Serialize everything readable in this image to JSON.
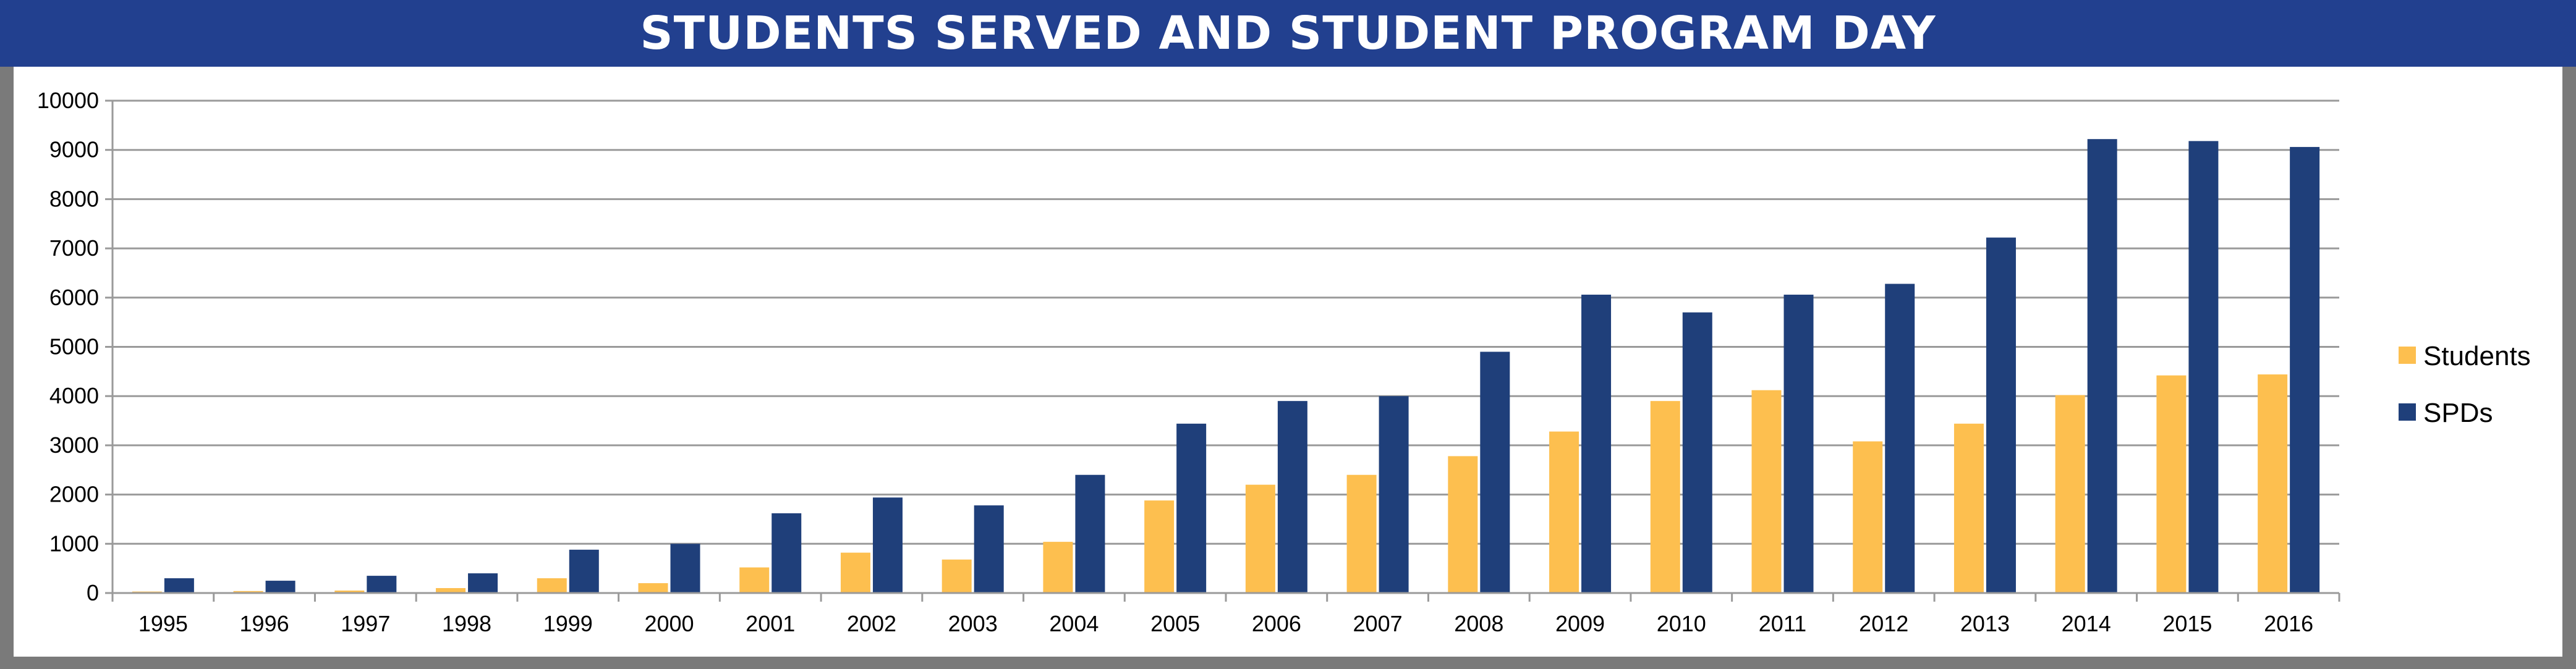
{
  "title": "STUDENTS SERVED AND STUDENT PROGRAM DAY",
  "colors": {
    "header_bg": "#22408f",
    "students": "#fdbf4f",
    "spds": "#1f3f7a",
    "grid": "#9a9a9a",
    "frame": "#7a7a7a"
  },
  "chart_data": {
    "type": "bar",
    "title": "STUDENTS SERVED AND STUDENT PROGRAM DAY",
    "xlabel": "",
    "ylabel": "",
    "ylim": [
      0,
      10000
    ],
    "yticks": [
      0,
      1000,
      2000,
      3000,
      4000,
      5000,
      6000,
      7000,
      8000,
      9000,
      10000
    ],
    "grid": true,
    "legend_position": "right",
    "categories": [
      "1995",
      "1996",
      "1997",
      "1998",
      "1999",
      "2000",
      "2001",
      "2002",
      "2003",
      "2004",
      "2005",
      "2006",
      "2007",
      "2008",
      "2009",
      "2010",
      "2011",
      "2012",
      "2013",
      "2014",
      "2015",
      "2016"
    ],
    "series": [
      {
        "name": "Students",
        "color": "#fdbf4f",
        "values": [
          30,
          40,
          50,
          100,
          300,
          200,
          520,
          820,
          680,
          1040,
          1880,
          2200,
          2400,
          2780,
          3280,
          3900,
          4120,
          3080,
          3440,
          4020,
          4420,
          4440
        ]
      },
      {
        "name": "SPDs",
        "color": "#1f3f7a",
        "values": [
          300,
          250,
          350,
          400,
          880,
          1000,
          1620,
          1940,
          1780,
          2400,
          3440,
          3900,
          4000,
          4900,
          6060,
          5700,
          6060,
          6280,
          7220,
          9220,
          9180,
          9060
        ]
      }
    ]
  }
}
